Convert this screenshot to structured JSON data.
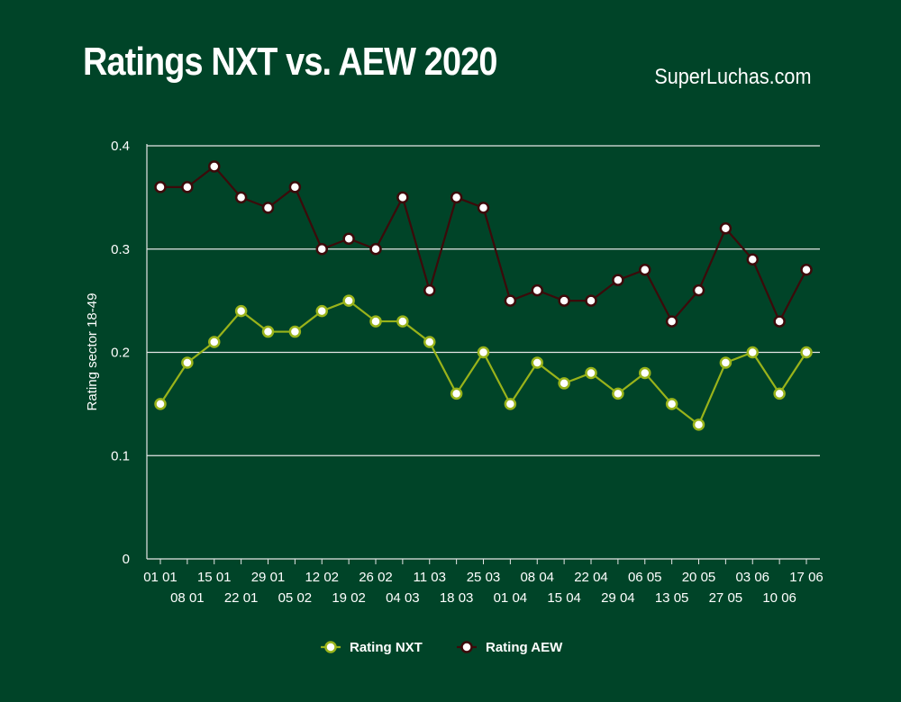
{
  "header": {
    "title": "Ratings NXT vs. AEW 2020",
    "source": "SuperLuchas.com"
  },
  "chart_data": {
    "type": "line",
    "title": "Ratings NXT vs. AEW 2020",
    "ylabel": "Rating sector 18-49",
    "xlabel": "",
    "ylim": [
      0,
      0.4
    ],
    "yticks": [
      "0",
      "0.1",
      "0.2",
      "0.3",
      "0.4"
    ],
    "grid": true,
    "legend_position": "bottom",
    "categories": [
      "01 01",
      "08 01",
      "15 01",
      "22 01",
      "29 01",
      "05 02",
      "12 02",
      "19 02",
      "26 02",
      "04 03",
      "11 03",
      "18 03",
      "25 03",
      "01 04",
      "08 04",
      "15 04",
      "22 04",
      "29 04",
      "06 05",
      "13 05",
      "20 05",
      "27 05",
      "03 06",
      "10 06",
      "17 06"
    ],
    "series": [
      {
        "name": "Rating NXT",
        "color": "#99b31a",
        "values": [
          0.15,
          0.19,
          0.21,
          0.24,
          0.22,
          0.22,
          0.24,
          0.25,
          0.23,
          0.23,
          0.21,
          0.16,
          0.2,
          0.15,
          0.19,
          0.17,
          0.18,
          0.16,
          0.18,
          0.15,
          0.13,
          0.19,
          0.2,
          0.16,
          0.2
        ]
      },
      {
        "name": "Rating AEW",
        "color": "#3c0a0a",
        "values": [
          0.36,
          0.36,
          0.38,
          0.35,
          0.34,
          0.36,
          0.3,
          0.31,
          0.3,
          0.35,
          0.26,
          0.35,
          0.34,
          0.25,
          0.26,
          0.25,
          0.25,
          0.27,
          0.28,
          0.23,
          0.26,
          0.32,
          0.29,
          0.23,
          0.28
        ]
      }
    ]
  }
}
